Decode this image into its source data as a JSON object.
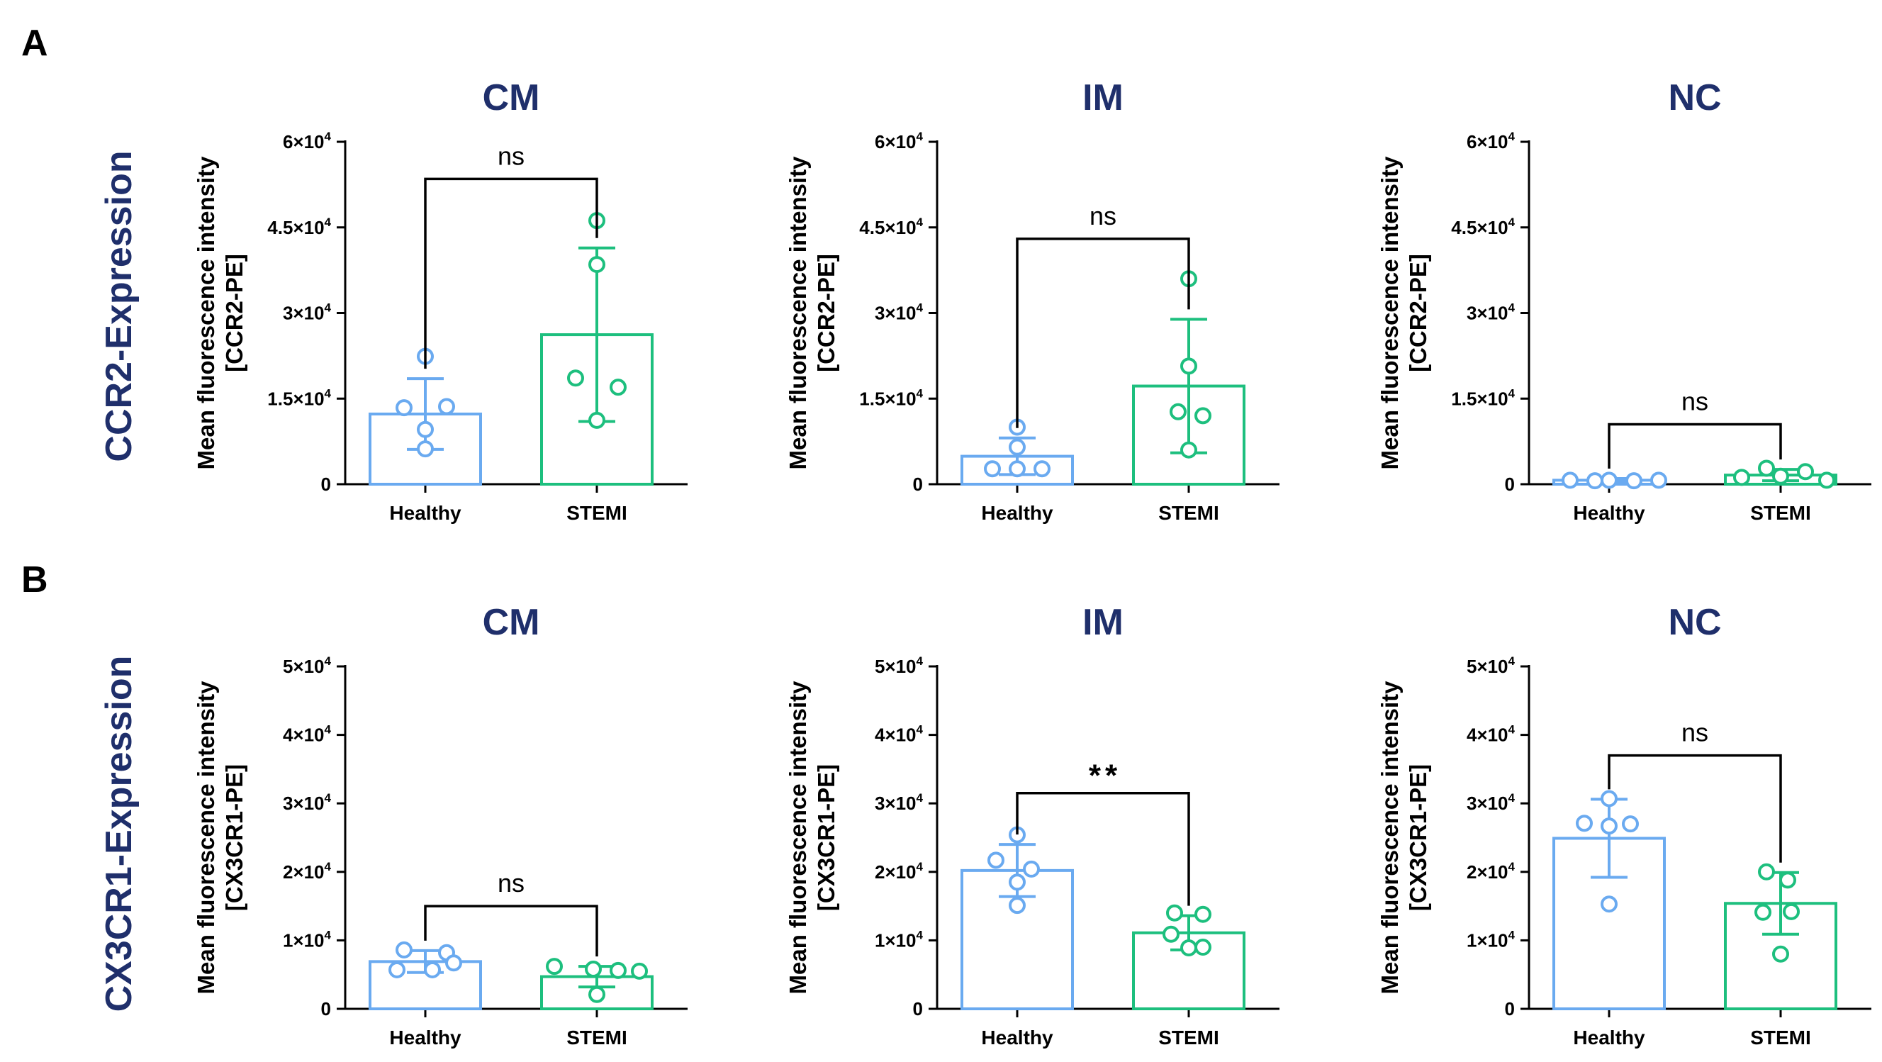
{
  "panels": [
    {
      "letter": "A",
      "row_label": "CCR2-Expression"
    },
    {
      "letter": "B",
      "row_label": "CX3CR1-Expression"
    }
  ],
  "colors": {
    "healthy": "#6aaaf0",
    "stemi": "#1dbf7e",
    "title": "#1f2f6b",
    "axis": "#000000"
  },
  "chart_data": [
    {
      "type": "bar",
      "title": "CM",
      "panel": "A",
      "ylabel": [
        "Mean fluorescence intensity",
        "[CCR2-PE]"
      ],
      "ylim": [
        0,
        60000
      ],
      "yticks": [
        {
          "value": 0,
          "mant": "0",
          "exp": ""
        },
        {
          "value": 15000,
          "mant": "1.5×10",
          "exp": "4"
        },
        {
          "value": 30000,
          "mant": "3×10",
          "exp": "4"
        },
        {
          "value": 45000,
          "mant": "4.5×10",
          "exp": "4"
        },
        {
          "value": 60000,
          "mant": "6×10",
          "exp": "4"
        }
      ],
      "categories": [
        "Healthy",
        "STEMI"
      ],
      "values": [
        12300,
        26200
      ],
      "errors": [
        6200,
        15200
      ],
      "points": [
        [
          22400,
          13400,
          13600,
          9600,
          6200
        ],
        [
          46200,
          38500,
          18600,
          17000,
          11200
        ]
      ],
      "significance": "ns",
      "bracket_y": 53500
    },
    {
      "type": "bar",
      "title": "IM",
      "panel": "A",
      "ylabel": [
        "Mean fluorescence intensity",
        "[CCR2-PE]"
      ],
      "ylim": [
        0,
        60000
      ],
      "yticks": [
        {
          "value": 0,
          "mant": "0",
          "exp": ""
        },
        {
          "value": 15000,
          "mant": "1.5×10",
          "exp": "4"
        },
        {
          "value": 30000,
          "mant": "3×10",
          "exp": "4"
        },
        {
          "value": 45000,
          "mant": "4.5×10",
          "exp": "4"
        },
        {
          "value": 60000,
          "mant": "6×10",
          "exp": "4"
        }
      ],
      "categories": [
        "Healthy",
        "STEMI"
      ],
      "values": [
        4900,
        17200
      ],
      "errors": [
        3200,
        11700
      ],
      "points": [
        [
          10000,
          6500,
          2700,
          2700,
          2700
        ],
        [
          36000,
          20700,
          12700,
          12000,
          6000
        ]
      ],
      "significance": "ns",
      "bracket_y": 43000
    },
    {
      "type": "bar",
      "title": "NC",
      "panel": "A",
      "ylabel": [
        "Mean fluorescence intensity",
        "[CCR2-PE]"
      ],
      "ylim": [
        0,
        60000
      ],
      "yticks": [
        {
          "value": 0,
          "mant": "0",
          "exp": ""
        },
        {
          "value": 15000,
          "mant": "1.5×10",
          "exp": "4"
        },
        {
          "value": 30000,
          "mant": "3×10",
          "exp": "4"
        },
        {
          "value": 45000,
          "mant": "4.5×10",
          "exp": "4"
        },
        {
          "value": 60000,
          "mant": "6×10",
          "exp": "4"
        }
      ],
      "categories": [
        "Healthy",
        "STEMI"
      ],
      "values": [
        700,
        1600
      ],
      "errors": [
        300,
        1000
      ],
      "points": [
        [
          700,
          600,
          700,
          600,
          700
        ],
        [
          1200,
          2800,
          1400,
          2200,
          700
        ]
      ],
      "significance": "ns",
      "bracket_y": 10500
    },
    {
      "type": "bar",
      "title": "CM",
      "panel": "B",
      "ylabel": [
        "Mean fluorescence intensity",
        "[CX3CR1-PE]"
      ],
      "ylim": [
        0,
        50000
      ],
      "yticks": [
        {
          "value": 0,
          "mant": "0",
          "exp": ""
        },
        {
          "value": 10000,
          "mant": "1×10",
          "exp": "4"
        },
        {
          "value": 20000,
          "mant": "2×10",
          "exp": "4"
        },
        {
          "value": 30000,
          "mant": "3×10",
          "exp": "4"
        },
        {
          "value": 40000,
          "mant": "4×10",
          "exp": "4"
        },
        {
          "value": 50000,
          "mant": "5×10",
          "exp": "4"
        }
      ],
      "categories": [
        "Healthy",
        "STEMI"
      ],
      "values": [
        6900,
        4700
      ],
      "errors": [
        1600,
        1500
      ],
      "points": [
        [
          8600,
          8200,
          5700,
          5700,
          6700
        ],
        [
          6200,
          2100,
          5800,
          5600,
          5500
        ]
      ],
      "significance": "ns",
      "bracket_y": 15000
    },
    {
      "type": "bar",
      "title": "IM",
      "panel": "B",
      "ylabel": [
        "Mean fluorescence intensity",
        "[CX3CR1-PE]"
      ],
      "ylim": [
        0,
        50000
      ],
      "yticks": [
        {
          "value": 0,
          "mant": "0",
          "exp": ""
        },
        {
          "value": 10000,
          "mant": "1×10",
          "exp": "4"
        },
        {
          "value": 20000,
          "mant": "2×10",
          "exp": "4"
        },
        {
          "value": 30000,
          "mant": "3×10",
          "exp": "4"
        },
        {
          "value": 40000,
          "mant": "4×10",
          "exp": "4"
        },
        {
          "value": 50000,
          "mant": "5×10",
          "exp": "4"
        }
      ],
      "categories": [
        "Healthy",
        "STEMI"
      ],
      "values": [
        20200,
        11100
      ],
      "errors": [
        3800,
        2500
      ],
      "points": [
        [
          25400,
          21700,
          20400,
          18500,
          15100
        ],
        [
          14000,
          13800,
          10900,
          9000,
          8900
        ]
      ],
      "significance": "**",
      "bracket_y": 31500
    },
    {
      "type": "bar",
      "title": "NC",
      "panel": "B",
      "ylabel": [
        "Mean fluorescence intensity",
        "[CX3CR1-PE]"
      ],
      "ylim": [
        0,
        50000
      ],
      "yticks": [
        {
          "value": 0,
          "mant": "0",
          "exp": ""
        },
        {
          "value": 10000,
          "mant": "1×10",
          "exp": "4"
        },
        {
          "value": 20000,
          "mant": "2×10",
          "exp": "4"
        },
        {
          "value": 30000,
          "mant": "3×10",
          "exp": "4"
        },
        {
          "value": 40000,
          "mant": "4×10",
          "exp": "4"
        },
        {
          "value": 50000,
          "mant": "5×10",
          "exp": "4"
        }
      ],
      "categories": [
        "Healthy",
        "STEMI"
      ],
      "values": [
        24900,
        15400
      ],
      "errors": [
        5700,
        4500
      ],
      "points": [
        [
          30700,
          27100,
          27000,
          26700,
          15300
        ],
        [
          20000,
          18800,
          14100,
          14200,
          8000
        ]
      ],
      "significance": "ns",
      "bracket_y": 37000
    }
  ]
}
